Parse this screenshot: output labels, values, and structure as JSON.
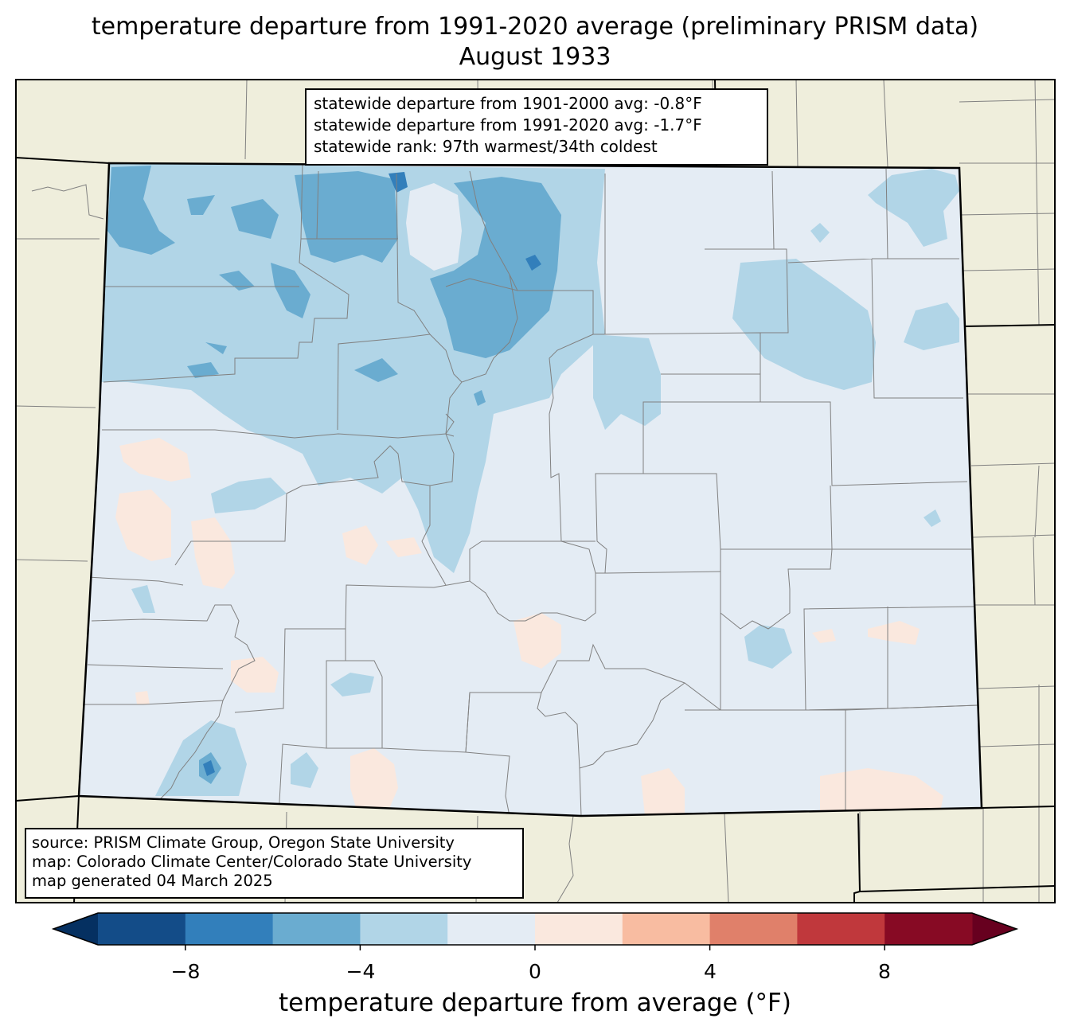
{
  "title": "temperature departure from 1991-2020 average (preliminary PRISM data)",
  "subtitle": "August 1933",
  "stats": {
    "line1": "statewide departure from 1901-2000 avg: -0.8°F",
    "line2": "statewide departure from 1991-2020 avg: -1.7°F",
    "line3": "statewide rank: 97th warmest/34th coldest"
  },
  "source": {
    "line1": "source: PRISM Climate Group, Oregon State University",
    "line2": "map: Colorado Climate Center/Colorado State University",
    "line3": "map generated 04 March 2025"
  },
  "colorbar": {
    "label": "temperature departure from average (°F)",
    "ticks": [
      "−8",
      "−4",
      "0",
      "4",
      "8"
    ],
    "range": [
      -10,
      10
    ],
    "step": 2,
    "extend": "both",
    "colors": [
      "#053061",
      "#134c88",
      "#327fbb",
      "#6aacd0",
      "#b1d5e7",
      "#e4ecf4",
      "#fae8de",
      "#f8bca1",
      "#e0806a",
      "#c0383c",
      "#870a24",
      "#67001f"
    ]
  },
  "colors": {
    "land": "#efeedc",
    "state_base": "#e4ecf4",
    "light_blue": "#b1d5e7",
    "mid_blue": "#6aacd0",
    "dark_blue": "#327fbb",
    "light_red": "#fae8de",
    "border": "#000000",
    "county": "#808080"
  }
}
